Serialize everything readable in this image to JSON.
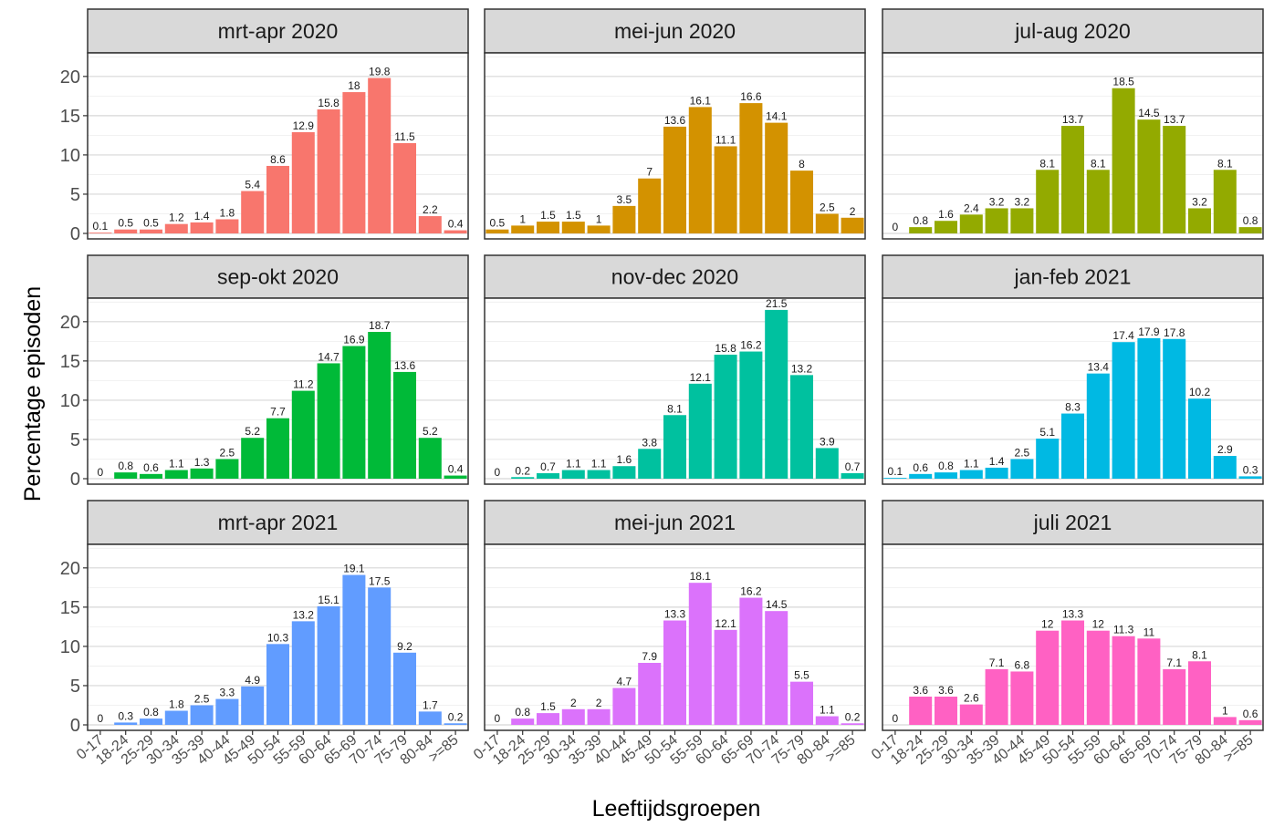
{
  "chart_data": {
    "type": "bar",
    "xlabel": "Leeftijdsgroepen",
    "ylabel": "Percentage episoden",
    "ylim": [
      0,
      23
    ],
    "yticks": [
      0,
      5,
      10,
      15,
      20
    ],
    "grid": true,
    "categories": [
      "0-17",
      "18-24",
      "25-29",
      "30-34",
      "35-39",
      "40-44",
      "45-49",
      "50-54",
      "55-59",
      "60-64",
      "65-69",
      "70-74",
      "75-79",
      "80-84",
      ">=85"
    ],
    "panels": [
      {
        "title": "mrt-apr 2020",
        "color": "#F8766D",
        "values": [
          0.1,
          0.5,
          0.5,
          1.2,
          1.4,
          1.8,
          5.4,
          8.6,
          12.9,
          15.8,
          18,
          19.8,
          11.5,
          2.2,
          0.4
        ]
      },
      {
        "title": "mei-jun 2020",
        "color": "#D39200",
        "values": [
          0.5,
          1,
          1.5,
          1.5,
          1,
          3.5,
          7,
          13.6,
          16.1,
          11.1,
          16.6,
          14.1,
          8,
          2.5,
          2
        ]
      },
      {
        "title": "jul-aug 2020",
        "color": "#93AA00",
        "values": [
          0,
          0.8,
          1.6,
          2.4,
          3.2,
          3.2,
          8.1,
          13.7,
          8.1,
          18.5,
          14.5,
          13.7,
          3.2,
          8.1,
          0.8
        ]
      },
      {
        "title": "sep-okt 2020",
        "color": "#00BA38",
        "values": [
          0,
          0.8,
          0.6,
          1.1,
          1.3,
          2.5,
          5.2,
          7.7,
          11.2,
          14.7,
          16.9,
          18.7,
          13.6,
          5.2,
          0.4
        ]
      },
      {
        "title": "nov-dec 2020",
        "color": "#00C19F",
        "values": [
          0,
          0.2,
          0.7,
          1.1,
          1.1,
          1.6,
          3.8,
          8.1,
          12.1,
          15.8,
          16.2,
          21.5,
          13.2,
          3.9,
          0.7
        ]
      },
      {
        "title": "jan-feb 2021",
        "color": "#00B9E3",
        "values": [
          0.1,
          0.6,
          0.8,
          1.1,
          1.4,
          2.5,
          5.1,
          8.3,
          13.4,
          17.4,
          17.9,
          17.8,
          10.2,
          2.9,
          0.3
        ]
      },
      {
        "title": "mrt-apr 2021",
        "color": "#619CFF",
        "values": [
          0,
          0.3,
          0.8,
          1.8,
          2.5,
          3.3,
          4.9,
          10.3,
          13.2,
          15.1,
          19.1,
          17.5,
          9.2,
          1.7,
          0.2
        ]
      },
      {
        "title": "mei-jun 2021",
        "color": "#DB72FB",
        "values": [
          0,
          0.8,
          1.5,
          2,
          2,
          4.7,
          7.9,
          13.3,
          18.1,
          12.1,
          16.2,
          14.5,
          5.5,
          1.1,
          0.2
        ]
      },
      {
        "title": "juli 2021",
        "color": "#FF61C3",
        "values": [
          0,
          3.6,
          3.6,
          2.6,
          7.1,
          6.8,
          12,
          13.3,
          12,
          11.3,
          11,
          7.1,
          8.1,
          1,
          0.6
        ]
      }
    ]
  }
}
